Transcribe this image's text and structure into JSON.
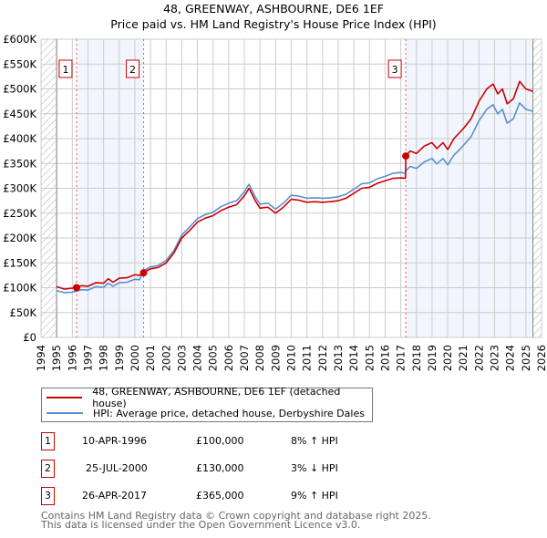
{
  "chart_data": {
    "type": "line",
    "title": "48, GREENWAY, ASHBOURNE, DE6 1EF",
    "subtitle": "Price paid vs. HM Land Registry's House Price Index (HPI)",
    "xlim": [
      1994,
      2026
    ],
    "ylim": [
      0,
      600000
    ],
    "x_ticks": [
      "1994",
      "1995",
      "1996",
      "1997",
      "1998",
      "1999",
      "2000",
      "2001",
      "2002",
      "2003",
      "2004",
      "2005",
      "2006",
      "2007",
      "2008",
      "2009",
      "2010",
      "2011",
      "2012",
      "2013",
      "2014",
      "2015",
      "2016",
      "2017",
      "2018",
      "2019",
      "2020",
      "2021",
      "2022",
      "2023",
      "2024",
      "2025",
      "2026"
    ],
    "y_ticks": [
      {
        "v": 0,
        "label": "£0"
      },
      {
        "v": 50000,
        "label": "£50K"
      },
      {
        "v": 100000,
        "label": "£100K"
      },
      {
        "v": 150000,
        "label": "£150K"
      },
      {
        "v": 200000,
        "label": "£200K"
      },
      {
        "v": 250000,
        "label": "£250K"
      },
      {
        "v": 300000,
        "label": "£300K"
      },
      {
        "v": 350000,
        "label": "£350K"
      },
      {
        "v": 400000,
        "label": "£400K"
      },
      {
        "v": 450000,
        "label": "£450K"
      },
      {
        "v": 500000,
        "label": "£500K"
      },
      {
        "v": 550000,
        "label": "£550K"
      },
      {
        "v": 600000,
        "label": "£600K"
      }
    ],
    "grid": true,
    "data_range": [
      1995,
      2025.45
    ],
    "series": [
      {
        "name": "48, GREENWAY, ASHBOURNE, DE6 1EF (detached house)",
        "color": "#cc0000",
        "x": [
          1995,
          1995.5,
          1996,
          1996.27,
          1996.6,
          1997,
          1997.5,
          1998,
          1998.3,
          1998.6,
          1999,
          1999.5,
          2000,
          2000.3,
          2000.56,
          2001,
          2001.5,
          2002,
          2002.5,
          2003,
          2003.5,
          2004,
          2004.5,
          2005,
          2005.5,
          2006,
          2006.5,
          2007,
          2007.3,
          2007.7,
          2008,
          2008.5,
          2009,
          2009.5,
          2010,
          2010.5,
          2011,
          2011.5,
          2012,
          2012.5,
          2013,
          2013.5,
          2014,
          2014.5,
          2015,
          2015.5,
          2016,
          2016.5,
          2017,
          2017.3,
          2017.32,
          2017.6,
          2018,
          2018.5,
          2019,
          2019.3,
          2019.7,
          2020,
          2020.4,
          2020.7,
          2021,
          2021.5,
          2022,
          2022.5,
          2022.9,
          2023.2,
          2023.5,
          2023.8,
          2024.2,
          2024.6,
          2025,
          2025.45
        ],
        "y": [
          102000,
          97000,
          99000,
          100000,
          104000,
          103000,
          110000,
          109000,
          118000,
          111000,
          119000,
          120000,
          126000,
          125000,
          130000,
          138000,
          141000,
          150000,
          170000,
          200000,
          215000,
          232000,
          240000,
          245000,
          255000,
          262000,
          267000,
          285000,
          300000,
          275000,
          260000,
          262000,
          250000,
          262000,
          278000,
          276000,
          272000,
          273000,
          272000,
          273000,
          275000,
          280000,
          290000,
          300000,
          302000,
          310000,
          315000,
          320000,
          321000,
          320000,
          365000,
          375000,
          370000,
          385000,
          392000,
          380000,
          392000,
          378000,
          400000,
          410000,
          420000,
          440000,
          475000,
          500000,
          510000,
          490000,
          500000,
          470000,
          480000,
          515000,
          500000,
          495000
        ]
      },
      {
        "name": "HPI: Average price, detached house, Derbyshire Dales",
        "color": "#5b8fd0",
        "x": [
          1995,
          1995.5,
          1996,
          1996.27,
          1996.6,
          1997,
          1997.5,
          1998,
          1998.3,
          1998.6,
          1999,
          1999.5,
          2000,
          2000.3,
          2000.56,
          2001,
          2001.5,
          2002,
          2002.5,
          2003,
          2003.5,
          2004,
          2004.5,
          2005,
          2005.5,
          2006,
          2006.5,
          2007,
          2007.3,
          2007.7,
          2008,
          2008.5,
          2009,
          2009.5,
          2010,
          2010.5,
          2011,
          2011.5,
          2012,
          2012.5,
          2013,
          2013.5,
          2014,
          2014.5,
          2015,
          2015.5,
          2016,
          2016.5,
          2017,
          2017.3,
          2017.32,
          2017.6,
          2018,
          2018.5,
          2019,
          2019.3,
          2019.7,
          2020,
          2020.4,
          2020.7,
          2021,
          2021.5,
          2022,
          2022.5,
          2022.9,
          2023.2,
          2023.5,
          2023.8,
          2024.2,
          2024.6,
          2025,
          2025.45
        ],
        "y": [
          94000,
          90000,
          91000,
          93000,
          96000,
          95000,
          102000,
          101000,
          109000,
          103000,
          110000,
          111000,
          117000,
          116000,
          134000,
          142000,
          145000,
          155000,
          175000,
          206000,
          222000,
          239000,
          247000,
          252000,
          263000,
          270000,
          275000,
          293000,
          308000,
          283000,
          268000,
          270000,
          258000,
          270000,
          286000,
          284000,
          280000,
          281000,
          280000,
          281000,
          283000,
          288000,
          298000,
          309000,
          311000,
          319000,
          324000,
          330000,
          332000,
          330000,
          335000,
          344000,
          340000,
          353000,
          360000,
          349000,
          360000,
          347000,
          367000,
          376000,
          386000,
          404000,
          436000,
          459000,
          468000,
          450000,
          459000,
          431000,
          440000,
          472000,
          459000,
          455000
        ]
      }
    ],
    "sales": [
      {
        "id": "1",
        "date": "10-APR-1996",
        "x": 1996.27,
        "price": 100000,
        "price_label": "£100,000",
        "hpi": "8% ↑ HPI"
      },
      {
        "id": "2",
        "date": "25-JUL-2000",
        "x": 2000.56,
        "price": 130000,
        "price_label": "£130,000",
        "hpi": "3% ↓ HPI"
      },
      {
        "id": "3",
        "date": "26-APR-2017",
        "x": 2017.32,
        "price": 365000,
        "price_label": "£365,000",
        "hpi": "9% ↑ HPI"
      }
    ],
    "legend_placement": "below"
  },
  "footer": {
    "line1": "Contains HM Land Registry data © Crown copyright and database right 2025.",
    "line2": "This data is licensed under the Open Government Licence v3.0."
  }
}
